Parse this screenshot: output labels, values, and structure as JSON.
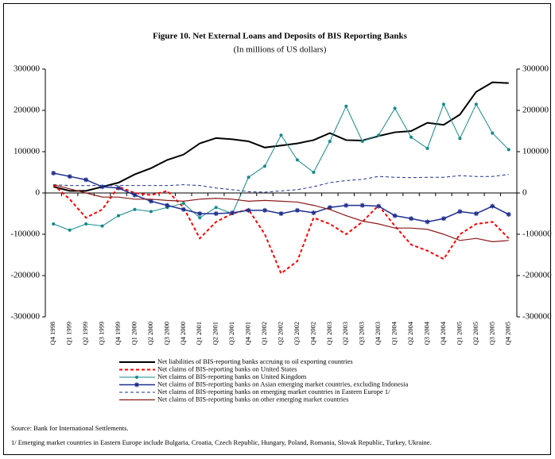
{
  "chart_data": {
    "type": "line",
    "title": "Figure 10. Net External Loans and Deposits of BIS Reporting Banks",
    "subtitle": "(In millions of US dollars)",
    "categories": [
      "Q4 1998",
      "Q1 1999",
      "Q2 1999",
      "Q3 1999",
      "Q4 1999",
      "Q1 2000",
      "Q2 2000",
      "Q3 2000",
      "Q4 2000",
      "Q1 2001",
      "Q2 2001",
      "Q3 2001",
      "Q4 2001",
      "Q1 2002",
      "Q2 2002",
      "Q3 2002",
      "Q4 2002",
      "Q1 2003",
      "Q2 2003",
      "Q3 2003",
      "Q4 2003",
      "Q1 2004",
      "Q2 2004",
      "Q3 2004",
      "Q4 2004",
      "Q1 2005",
      "Q2 2005",
      "Q3 2005",
      "Q4 2005"
    ],
    "series": [
      {
        "name": "Net liabilities of BIS-reporting banks accruing to oil exporting countries",
        "color": "#000000",
        "dash": false,
        "marker": "none",
        "width": 2,
        "values": [
          15000,
          5000,
          5000,
          15000,
          25000,
          45000,
          60000,
          80000,
          93000,
          120000,
          133000,
          130000,
          125000,
          110000,
          115000,
          120000,
          128000,
          145000,
          128000,
          127000,
          138000,
          147000,
          150000,
          170000,
          165000,
          190000,
          245000,
          268000,
          266000
        ]
      },
      {
        "name": "Net claims of BIS-reporting banks on United States",
        "color": "#ff0000",
        "dash": true,
        "marker": "none",
        "width": 2,
        "values": [
          20000,
          -15000,
          -60000,
          -40000,
          15000,
          0,
          -5000,
          5000,
          -35000,
          -110000,
          -70000,
          -50000,
          -40000,
          -100000,
          -195000,
          -165000,
          -60000,
          -75000,
          -100000,
          -70000,
          -30000,
          -80000,
          -125000,
          -140000,
          -160000,
          -100000,
          -75000,
          -70000,
          -110000
        ]
      },
      {
        "name": "Net claims of BIS-reporting banks on United Kingdom",
        "color": "#138a8a",
        "dash": false,
        "marker": "circle",
        "width": 1,
        "values": [
          -75000,
          -90000,
          -75000,
          -80000,
          -55000,
          -40000,
          -45000,
          -35000,
          -25000,
          -60000,
          -35000,
          -50000,
          38000,
          65000,
          140000,
          80000,
          50000,
          125000,
          210000,
          125000,
          140000,
          205000,
          135000,
          108000,
          215000,
          132000,
          215000,
          145000,
          105000
        ]
      },
      {
        "name": "Net claims of BIS-reporting banks on Asian emerging market countries, excluding Indonesia",
        "color": "#1f2f8f",
        "dash": false,
        "marker": "star",
        "width": 1.5,
        "values": [
          48000,
          40000,
          32000,
          15000,
          12000,
          -5000,
          -20000,
          -30000,
          -40000,
          -50000,
          -50000,
          -48000,
          -42000,
          -42000,
          -50000,
          -42000,
          -48000,
          -35000,
          -30000,
          -30000,
          -32000,
          -55000,
          -62000,
          -70000,
          -62000,
          -45000,
          -50000,
          -32000,
          -52000
        ]
      },
      {
        "name": "Net claims of BIS-reporting banks on emerging market countries in Eastern Europe 1/",
        "color": "#1f2f8f",
        "dash": true,
        "marker": "none",
        "width": 1,
        "values": [
          20000,
          18000,
          18000,
          18000,
          18000,
          18000,
          18000,
          18000,
          20000,
          18000,
          12000,
          8000,
          3000,
          2000,
          5000,
          8000,
          15000,
          25000,
          30000,
          33000,
          40000,
          38000,
          37000,
          38000,
          38000,
          42000,
          40000,
          40000,
          45000
        ]
      },
      {
        "name": "Net claims of BIS-reporting banks on other emerging market countries",
        "color": "#8b1a1a",
        "dash": false,
        "marker": "none",
        "width": 1.2,
        "values": [
          20000,
          10000,
          0,
          -10000,
          -10000,
          -15000,
          -15000,
          -18000,
          -20000,
          -15000,
          -13000,
          -15000,
          -20000,
          -18000,
          -20000,
          -22000,
          -30000,
          -40000,
          -55000,
          -68000,
          -75000,
          -85000,
          -85000,
          -88000,
          -100000,
          -115000,
          -110000,
          -118000,
          -115000
        ]
      }
    ],
    "ylim": [
      -300000,
      300000
    ],
    "yticks": [
      -300000,
      -200000,
      -100000,
      0,
      100000,
      200000,
      300000
    ],
    "y2lim": [
      -300000,
      300000
    ],
    "y2ticks": [
      -300000,
      -200000,
      -100000,
      0,
      100000,
      200000,
      300000
    ],
    "notes": [
      "Source: Bank for International Settlements.",
      "1/ Emerging market countries in Eastern Europe include Bulgaria, Croatia, Czech Republic, Hungary, Poland, Romania, Slovak Republic, Turkey, Ukraine."
    ]
  }
}
